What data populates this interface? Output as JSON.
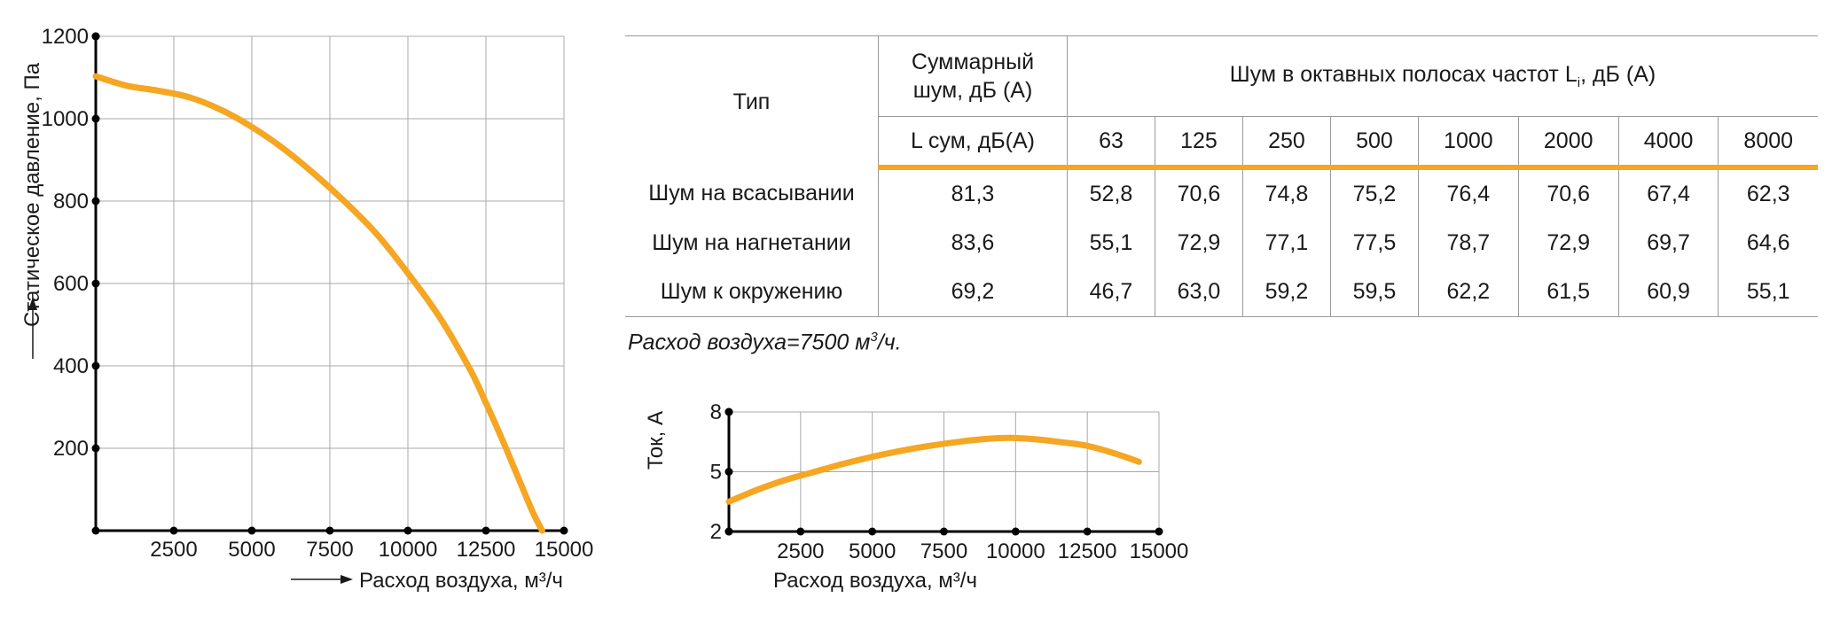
{
  "chart_data": [
    {
      "type": "line",
      "x": [
        0,
        1000,
        2000,
        3000,
        4000,
        5000,
        6000,
        7000,
        8000,
        9000,
        10000,
        11000,
        12000,
        12500,
        13000,
        13500,
        14000,
        14300
      ],
      "series": [
        {
          "values": [
            1103,
            1080,
            1068,
            1052,
            1022,
            980,
            928,
            866,
            797,
            720,
            625,
            520,
            390,
            310,
            225,
            135,
            45,
            0
          ]
        }
      ],
      "xlabel": "Расход воздуха, м³/ч",
      "ylabel": "Статическое давление, Па",
      "xlim": [
        0,
        15000
      ],
      "ylim": [
        0,
        1200
      ],
      "xticks": [
        "2500",
        "5000",
        "7500",
        "10000",
        "12500",
        "15000"
      ],
      "yticks": [
        "200",
        "400",
        "600",
        "800",
        "1000",
        "1200"
      ],
      "grid": true,
      "color": "#f5a623"
    },
    {
      "type": "line",
      "x": [
        0,
        1000,
        2000,
        3000,
        4000,
        5000,
        6000,
        7000,
        8000,
        9000,
        9800,
        10500,
        11500,
        12500,
        13500,
        14300
      ],
      "series": [
        {
          "values": [
            3.5,
            4.1,
            4.6,
            5.0,
            5.4,
            5.75,
            6.05,
            6.3,
            6.5,
            6.65,
            6.7,
            6.65,
            6.5,
            6.3,
            5.9,
            5.5
          ]
        }
      ],
      "xlabel": "Расход воздуха, м³/ч",
      "ylabel": "Ток, А",
      "xlim": [
        0,
        15000
      ],
      "ylim": [
        2,
        8
      ],
      "xticks": [
        "2500",
        "5000",
        "7500",
        "10000",
        "12500",
        "15000"
      ],
      "yticks": [
        "2",
        "5",
        "8"
      ],
      "grid": true,
      "color": "#f5a623"
    }
  ],
  "table": {
    "type_header": "Тип",
    "sum_header_line1": "Суммарный",
    "sum_header_line2": "шум, дБ (А)",
    "oct_header": "Шум в октавных полосах частот L",
    "oct_header_sub": "i",
    "oct_header_tail": ", дБ (А)",
    "sum_sub_header": "L сум, дБ(А)",
    "frequencies": [
      "63",
      "125",
      "250",
      "500",
      "1000",
      "2000",
      "4000",
      "8000"
    ],
    "rows": [
      {
        "type": "Шум на всасывании",
        "sum": "81,3",
        "values": [
          "52,8",
          "70,6",
          "74,8",
          "75,2",
          "76,4",
          "70,6",
          "67,4",
          "62,3"
        ]
      },
      {
        "type": "Шум на нагнетании",
        "sum": "83,6",
        "values": [
          "55,1",
          "72,9",
          "77,1",
          "77,5",
          "78,7",
          "72,9",
          "69,7",
          "64,6"
        ]
      },
      {
        "type": "Шум к окружению",
        "sum": "69,2",
        "values": [
          "46,7",
          "63,0",
          "59,2",
          "59,5",
          "62,2",
          "61,5",
          "60,9",
          "55,1"
        ]
      }
    ]
  },
  "note": {
    "text": "Расход воздуха=7500 м",
    "sup": "3",
    "tail": "/ч."
  }
}
